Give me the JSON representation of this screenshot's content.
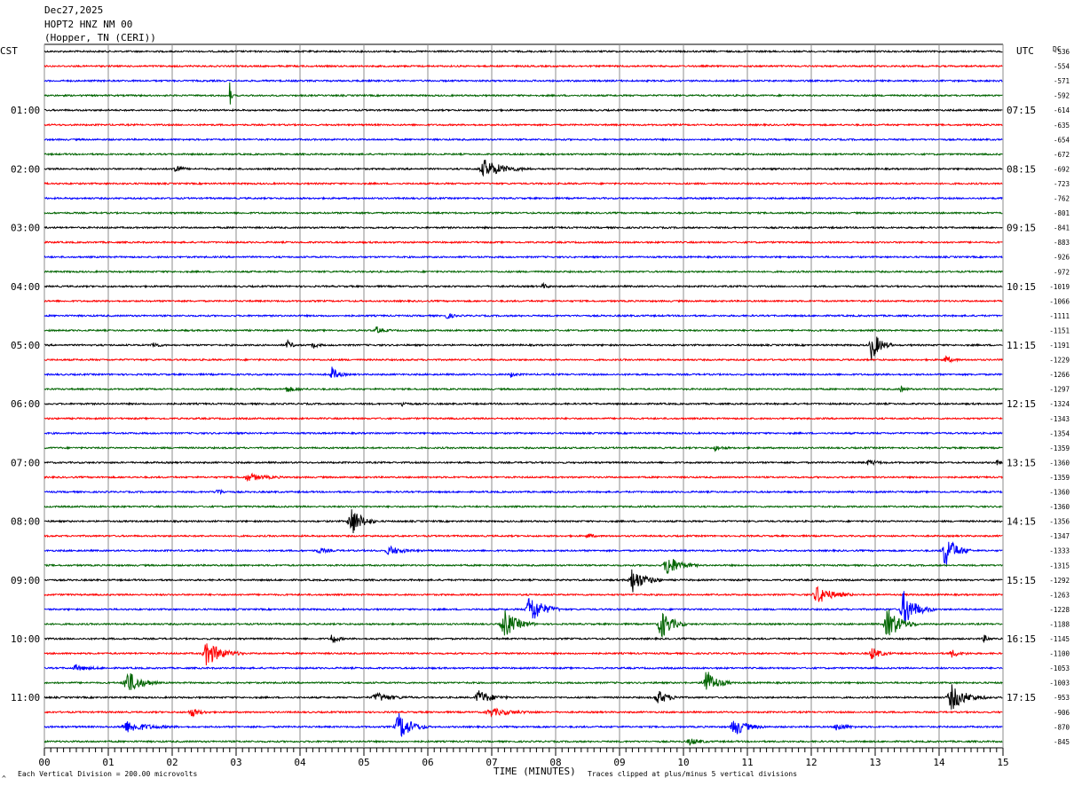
{
  "header": {
    "date": "Dec27,2025",
    "station": "HOPT2 HNZ NM 00",
    "location": "(Hopper, TN (CERI))"
  },
  "labels": {
    "left_axis_title": "CST",
    "right_axis_title": "UTC",
    "dc_label": "DC",
    "x_title": "TIME (MINUTES)",
    "footer_left": "Each Vertical Division =  200.00 microvolts",
    "footer_right": "Traces clipped at plus/minus 5 vertical divisions",
    "corner_mark": "^"
  },
  "chart_data": {
    "type": "line",
    "xlim": [
      0,
      15
    ],
    "x_ticks": [
      "00",
      "01",
      "02",
      "03",
      "04",
      "05",
      "06",
      "07",
      "08",
      "09",
      "10",
      "11",
      "12",
      "13",
      "14",
      "15"
    ],
    "trace_colors": [
      "#000000",
      "#ff0000",
      "#0000ff",
      "#006400"
    ],
    "left_hour_labels": [
      "01:00",
      "02:00",
      "03:00",
      "04:00",
      "05:00",
      "06:00",
      "07:00",
      "08:00",
      "09:00",
      "10:00",
      "11:00"
    ],
    "right_hour_labels": [
      "07:15",
      "08:15",
      "09:15",
      "10:15",
      "11:15",
      "12:15",
      "13:15",
      "14:15",
      "15:15",
      "16:15",
      "17:15"
    ],
    "dc_offsets": [
      "-536",
      "-554",
      "-571",
      "-592",
      "-614",
      "-635",
      "-654",
      "-672",
      "-692",
      "-723",
      "-762",
      "-801",
      "-841",
      "-883",
      "-926",
      "-972",
      "-1019",
      "-1066",
      "-1111",
      "-1151",
      "-1191",
      "-1229",
      "-1266",
      "-1297",
      "-1324",
      "-1343",
      "-1354",
      "-1359",
      "-1360",
      "-1359",
      "-1360",
      "-1360",
      "-1356",
      "-1347",
      "-1333",
      "-1315",
      "-1292",
      "-1263",
      "-1228",
      "-1188",
      "-1145",
      "-1100",
      "-1053",
      "-1003",
      "-953",
      "-906",
      "-870",
      "-845"
    ],
    "events": [
      {
        "trace": 3,
        "minute": 2.9,
        "amp": 18,
        "width": 0.03
      },
      {
        "trace": 8,
        "minute": 2.05,
        "amp": 7,
        "width": 0.12
      },
      {
        "trace": 8,
        "minute": 6.9,
        "amp": 10,
        "width": 0.45
      },
      {
        "trace": 16,
        "minute": 7.8,
        "amp": 3,
        "width": 0.1
      },
      {
        "trace": 18,
        "minute": 6.3,
        "amp": 4,
        "width": 0.12
      },
      {
        "trace": 19,
        "minute": 5.2,
        "amp": 4,
        "width": 0.15
      },
      {
        "trace": 20,
        "minute": 1.7,
        "amp": 4,
        "width": 0.12
      },
      {
        "trace": 20,
        "minute": 3.8,
        "amp": 5,
        "width": 0.12
      },
      {
        "trace": 20,
        "minute": 4.2,
        "amp": 4,
        "width": 0.1
      },
      {
        "trace": 20,
        "minute": 12.95,
        "amp": 18,
        "width": 0.2
      },
      {
        "trace": 21,
        "minute": 14.1,
        "amp": 4,
        "width": 0.15
      },
      {
        "trace": 22,
        "minute": 4.5,
        "amp": 8,
        "width": 0.15
      },
      {
        "trace": 22,
        "minute": 7.3,
        "amp": 3,
        "width": 0.1
      },
      {
        "trace": 23,
        "minute": 3.8,
        "amp": 3,
        "width": 0.2
      },
      {
        "trace": 23,
        "minute": 13.4,
        "amp": 3,
        "width": 0.12
      },
      {
        "trace": 24,
        "minute": 5.6,
        "amp": 3,
        "width": 0.1
      },
      {
        "trace": 27,
        "minute": 10.5,
        "amp": 3,
        "width": 0.15
      },
      {
        "trace": 28,
        "minute": 12.9,
        "amp": 3,
        "width": 0.2
      },
      {
        "trace": 28,
        "minute": 14.9,
        "amp": 3,
        "width": 0.1
      },
      {
        "trace": 29,
        "minute": 3.2,
        "amp": 4,
        "width": 0.35
      },
      {
        "trace": 30,
        "minute": 2.7,
        "amp": 4,
        "width": 0.12
      },
      {
        "trace": 32,
        "minute": 4.8,
        "amp": 18,
        "width": 0.25
      },
      {
        "trace": 33,
        "minute": 8.5,
        "amp": 3,
        "width": 0.1
      },
      {
        "trace": 34,
        "minute": 4.3,
        "amp": 3,
        "width": 0.2
      },
      {
        "trace": 34,
        "minute": 5.4,
        "amp": 5,
        "width": 0.3
      },
      {
        "trace": 34,
        "minute": 14.1,
        "amp": 20,
        "width": 0.25
      },
      {
        "trace": 35,
        "minute": 9.75,
        "amp": 12,
        "width": 0.3
      },
      {
        "trace": 36,
        "minute": 9.2,
        "amp": 14,
        "width": 0.3
      },
      {
        "trace": 37,
        "minute": 12.1,
        "amp": 10,
        "width": 0.35
      },
      {
        "trace": 38,
        "minute": 7.6,
        "amp": 18,
        "width": 0.3
      },
      {
        "trace": 38,
        "minute": 13.45,
        "amp": 20,
        "width": 0.3
      },
      {
        "trace": 39,
        "minute": 7.2,
        "amp": 16,
        "width": 0.3
      },
      {
        "trace": 39,
        "minute": 9.65,
        "amp": 18,
        "width": 0.25
      },
      {
        "trace": 39,
        "minute": 13.2,
        "amp": 18,
        "width": 0.3
      },
      {
        "trace": 40,
        "minute": 4.5,
        "amp": 7,
        "width": 0.12
      },
      {
        "trace": 40,
        "minute": 14.7,
        "amp": 4,
        "width": 0.1
      },
      {
        "trace": 41,
        "minute": 2.55,
        "amp": 14,
        "width": 0.35
      },
      {
        "trace": 41,
        "minute": 12.95,
        "amp": 7,
        "width": 0.2
      },
      {
        "trace": 41,
        "minute": 14.2,
        "amp": 4,
        "width": 0.2
      },
      {
        "trace": 42,
        "minute": 0.5,
        "amp": 3,
        "width": 0.3
      },
      {
        "trace": 43,
        "minute": 1.3,
        "amp": 14,
        "width": 0.3
      },
      {
        "trace": 43,
        "minute": 10.35,
        "amp": 16,
        "width": 0.25
      },
      {
        "trace": 44,
        "minute": 5.2,
        "amp": 5,
        "width": 0.35
      },
      {
        "trace": 44,
        "minute": 6.8,
        "amp": 8,
        "width": 0.3
      },
      {
        "trace": 44,
        "minute": 9.6,
        "amp": 8,
        "width": 0.25
      },
      {
        "trace": 44,
        "minute": 14.2,
        "amp": 14,
        "width": 0.35
      },
      {
        "trace": 45,
        "minute": 2.3,
        "amp": 5,
        "width": 0.2
      },
      {
        "trace": 45,
        "minute": 7.0,
        "amp": 4,
        "width": 0.5
      },
      {
        "trace": 46,
        "minute": 1.3,
        "amp": 6,
        "width": 0.5
      },
      {
        "trace": 46,
        "minute": 5.55,
        "amp": 16,
        "width": 0.3
      },
      {
        "trace": 46,
        "minute": 10.8,
        "amp": 10,
        "width": 0.3
      },
      {
        "trace": 46,
        "minute": 12.4,
        "amp": 5,
        "width": 0.2
      },
      {
        "trace": 47,
        "minute": 10.1,
        "amp": 4,
        "width": 0.2
      }
    ]
  }
}
